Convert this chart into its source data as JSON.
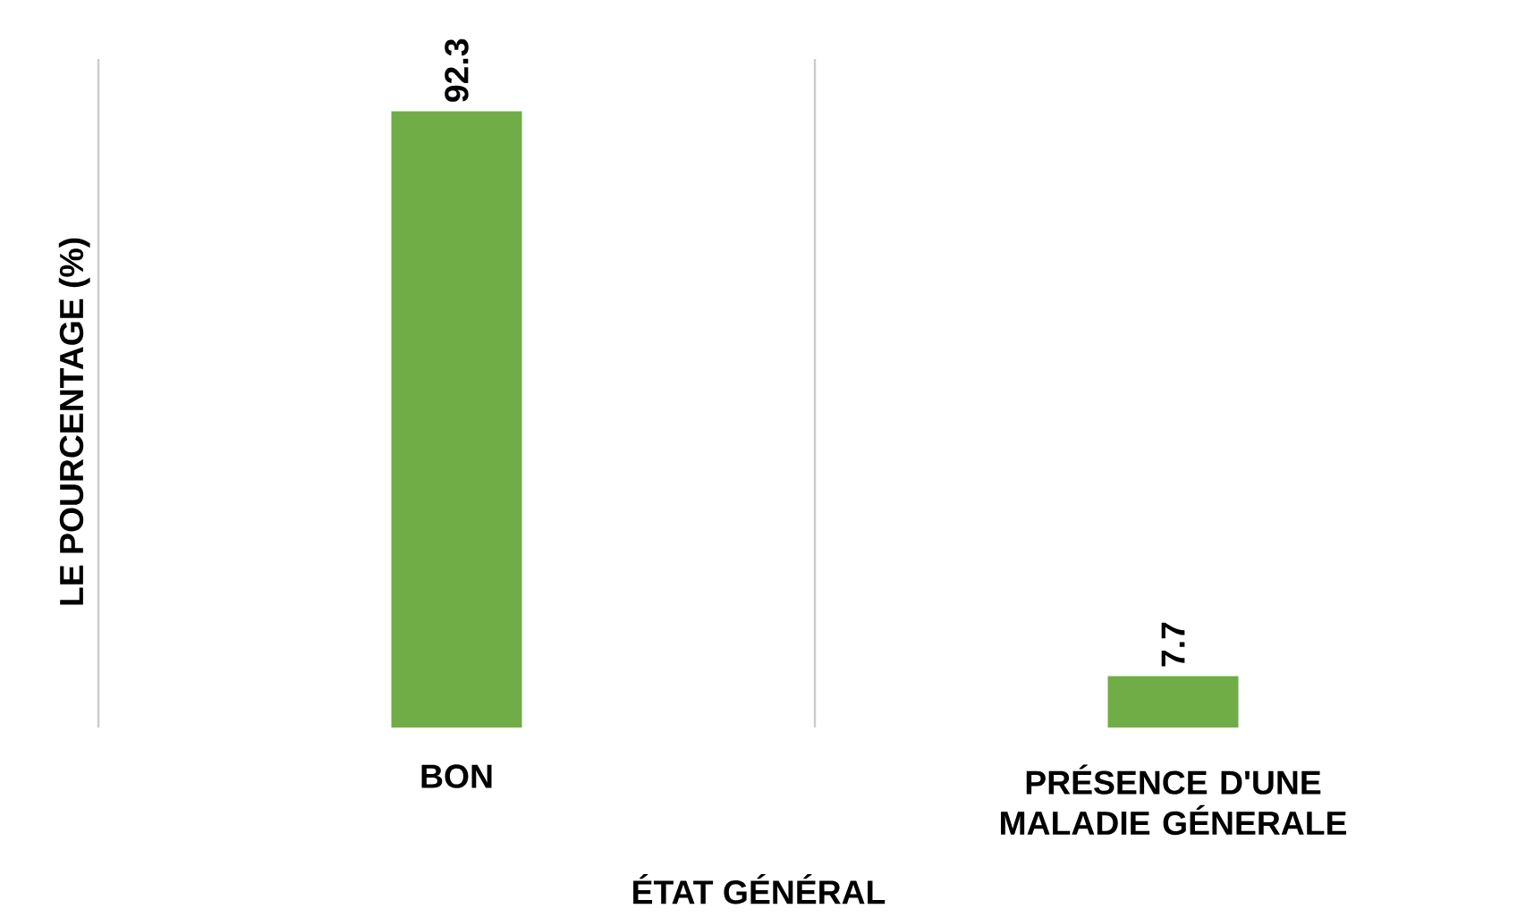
{
  "chart_data": {
    "type": "bar",
    "xlabel": "ÉTAT GÉNÉRAL",
    "ylabel": "LE POURCENTAGE (%)",
    "categories": [
      "BON",
      "PRÉSENCE D'UNE MALADIE GÉNERALE"
    ],
    "values": [
      92.3,
      7.7
    ],
    "color": "#70ad47",
    "data_labels": true,
    "grid": "x"
  }
}
